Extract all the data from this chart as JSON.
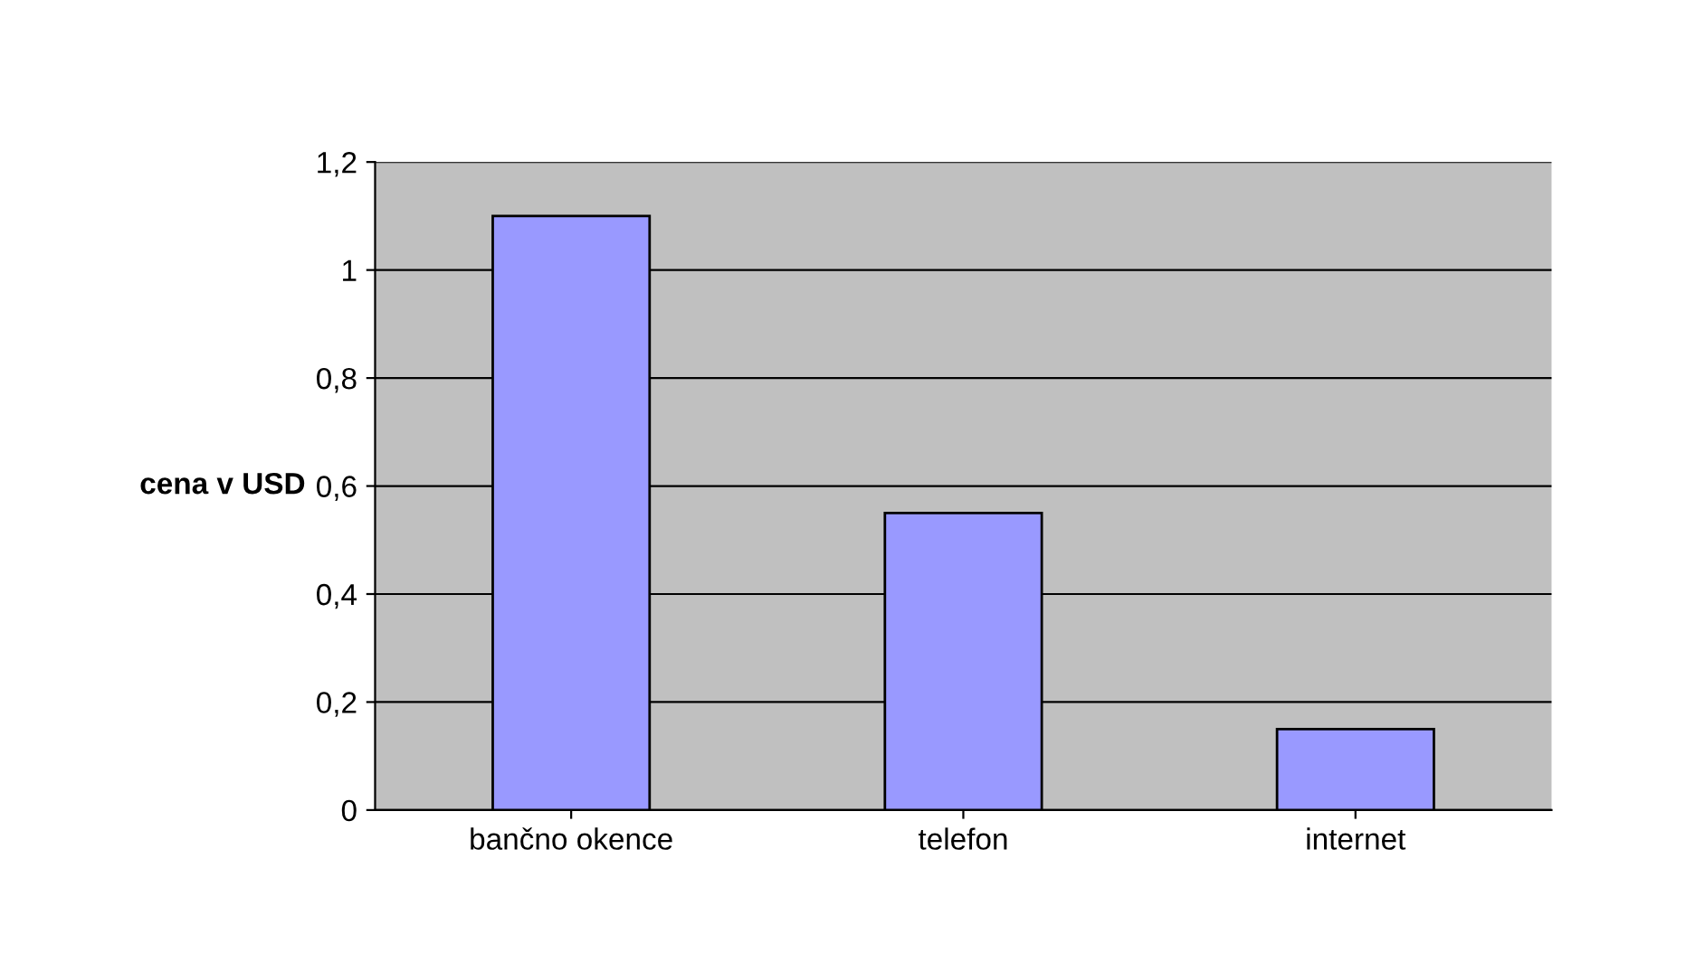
{
  "chart_data": {
    "type": "bar",
    "ylabel": "cena v USD",
    "categories": [
      "bančno okence",
      "telefon",
      "internet"
    ],
    "values": [
      1.1,
      0.55,
      0.15
    ],
    "color": "#9999ff",
    "ylim": [
      0,
      1.2
    ],
    "yticks": [
      0,
      {
        "value": 0.2,
        "label": "0,2"
      },
      {
        "value": 0.4,
        "label": "0,4"
      },
      {
        "value": 0.6,
        "label": "0,6"
      },
      {
        "value": 0.8,
        "label": "0,8"
      },
      1,
      {
        "value": 1.2,
        "label": "1,2"
      }
    ],
    "grid": "y",
    "legend": false
  }
}
